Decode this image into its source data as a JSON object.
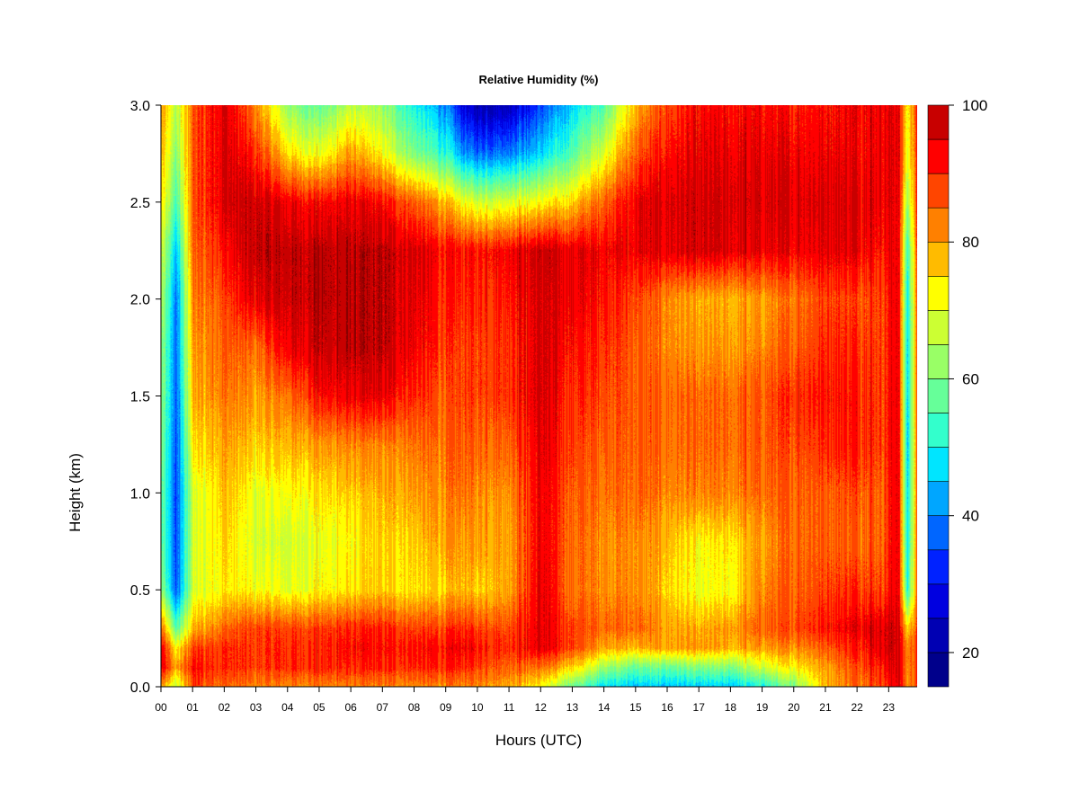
{
  "chart_data": {
    "type": "heatmap",
    "title": "Relative Humidity (%)",
    "xlabel": "Hours (UTC)",
    "ylabel": "Height (km)",
    "xlim": [
      0,
      23.9
    ],
    "ylim": [
      0.0,
      3.0
    ],
    "x_ticks": [
      0,
      1,
      2,
      3,
      4,
      5,
      6,
      7,
      8,
      9,
      10,
      11,
      12,
      13,
      14,
      15,
      16,
      17,
      18,
      19,
      20,
      21,
      22,
      23
    ],
    "x_tick_labels": [
      "00",
      "01",
      "02",
      "03",
      "04",
      "05",
      "06",
      "07",
      "08",
      "09",
      "10",
      "11",
      "12",
      "13",
      "14",
      "15",
      "16",
      "17",
      "18",
      "19",
      "20",
      "21",
      "22",
      "23"
    ],
    "y_ticks": [
      0.0,
      0.5,
      1.0,
      1.5,
      2.0,
      2.5,
      3.0
    ],
    "y_tick_labels": [
      "0.0",
      "0.5",
      "1.0",
      "1.5",
      "2.0",
      "2.5",
      "3.0"
    ],
    "colorbar": {
      "range": [
        15,
        100
      ],
      "levels": [
        15,
        20,
        25,
        30,
        35,
        40,
        45,
        50,
        55,
        60,
        65,
        70,
        75,
        80,
        85,
        90,
        95,
        100
      ],
      "ticks": [
        20,
        40,
        60,
        80,
        100
      ],
      "tick_labels": [
        "20",
        "40",
        "60",
        "80",
        "100"
      ],
      "colors": [
        "#00008B",
        "#0000B3",
        "#0000E0",
        "#0022FF",
        "#0066FF",
        "#00A6FF",
        "#00E5FF",
        "#33FFCC",
        "#66FF99",
        "#99FF66",
        "#CCFF33",
        "#FFFF00",
        "#FFBB00",
        "#FF8000",
        "#FF4500",
        "#FF0000",
        "#C80000",
        "#800000"
      ]
    },
    "grid_x": [
      0,
      0.5,
      1,
      2,
      3,
      4,
      5,
      6,
      7,
      8,
      9,
      9.5,
      10,
      11,
      12,
      13,
      14,
      15,
      16,
      17,
      18,
      19,
      20,
      21,
      22,
      22.8,
      23.3,
      23.6,
      23.9
    ],
    "grid_y": [
      0.0,
      0.1,
      0.2,
      0.3,
      0.5,
      0.75,
      1.0,
      1.25,
      1.5,
      1.75,
      2.0,
      2.25,
      2.5,
      2.75,
      3.0
    ],
    "values": [
      [
        80,
        65,
        88,
        85,
        82,
        82,
        82,
        82,
        82,
        82,
        82,
        82,
        82,
        80,
        72,
        58,
        48,
        45,
        45,
        45,
        45,
        50,
        60,
        78,
        85,
        88,
        96,
        80,
        88
      ],
      [
        95,
        78,
        92,
        90,
        88,
        90,
        90,
        90,
        90,
        90,
        90,
        90,
        88,
        86,
        84,
        76,
        64,
        58,
        58,
        60,
        60,
        68,
        74,
        80,
        88,
        92,
        97,
        82,
        90
      ],
      [
        94,
        72,
        88,
        90,
        88,
        90,
        90,
        92,
        92,
        92,
        92,
        94,
        92,
        90,
        95,
        88,
        80,
        78,
        80,
        80,
        78,
        80,
        82,
        86,
        92,
        96,
        97,
        82,
        90
      ],
      [
        85,
        55,
        78,
        85,
        88,
        88,
        88,
        90,
        90,
        88,
        88,
        90,
        88,
        88,
        95,
        88,
        85,
        85,
        80,
        78,
        80,
        85,
        88,
        92,
        95,
        96,
        97,
        75,
        88
      ],
      [
        62,
        35,
        68,
        74,
        72,
        70,
        72,
        74,
        76,
        74,
        76,
        78,
        76,
        80,
        95,
        84,
        82,
        82,
        76,
        70,
        72,
        82,
        86,
        88,
        90,
        88,
        96,
        50,
        85
      ],
      [
        58,
        34,
        68,
        76,
        68,
        68,
        70,
        72,
        76,
        76,
        80,
        80,
        80,
        80,
        94,
        85,
        82,
        82,
        78,
        72,
        74,
        80,
        85,
        86,
        86,
        86,
        96,
        48,
        85
      ],
      [
        58,
        34,
        68,
        78,
        70,
        72,
        74,
        76,
        78,
        80,
        82,
        84,
        82,
        82,
        94,
        86,
        84,
        85,
        82,
        82,
        82,
        84,
        86,
        86,
        88,
        86,
        96,
        46,
        85
      ],
      [
        60,
        35,
        74,
        80,
        76,
        78,
        80,
        82,
        82,
        84,
        84,
        86,
        85,
        86,
        95,
        88,
        86,
        86,
        84,
        84,
        84,
        86,
        88,
        90,
        92,
        88,
        96,
        45,
        85
      ],
      [
        62,
        36,
        78,
        84,
        80,
        84,
        92,
        94,
        94,
        90,
        86,
        88,
        88,
        90,
        96,
        90,
        88,
        86,
        85,
        84,
        84,
        86,
        90,
        92,
        92,
        88,
        96,
        46,
        86
      ],
      [
        62,
        37,
        80,
        86,
        84,
        94,
        97,
        98,
        98,
        94,
        88,
        88,
        88,
        90,
        96,
        92,
        90,
        86,
        82,
        80,
        80,
        82,
        86,
        90,
        90,
        88,
        96,
        46,
        86
      ],
      [
        65,
        38,
        82,
        88,
        95,
        97,
        98,
        98,
        98,
        95,
        90,
        90,
        90,
        92,
        96,
        94,
        92,
        88,
        82,
        78,
        78,
        80,
        84,
        88,
        88,
        88,
        96,
        48,
        86
      ],
      [
        68,
        44,
        85,
        92,
        98,
        98,
        98,
        98,
        98,
        96,
        92,
        92,
        92,
        94,
        97,
        95,
        94,
        94,
        95,
        96,
        95,
        94,
        94,
        95,
        95,
        92,
        96,
        52,
        88
      ],
      [
        74,
        54,
        86,
        96,
        97,
        94,
        92,
        94,
        92,
        86,
        78,
        72,
        68,
        70,
        72,
        76,
        86,
        94,
        96,
        96,
        96,
        96,
        96,
        96,
        96,
        94,
        96,
        62,
        90
      ],
      [
        78,
        60,
        86,
        96,
        90,
        75,
        70,
        80,
        72,
        60,
        52,
        42,
        38,
        40,
        46,
        56,
        70,
        86,
        92,
        94,
        94,
        94,
        94,
        94,
        94,
        94,
        96,
        70,
        90
      ],
      [
        80,
        65,
        86,
        96,
        82,
        62,
        56,
        66,
        62,
        50,
        40,
        28,
        22,
        24,
        34,
        46,
        56,
        78,
        88,
        92,
        92,
        92,
        92,
        92,
        94,
        94,
        96,
        72,
        90
      ]
    ]
  }
}
